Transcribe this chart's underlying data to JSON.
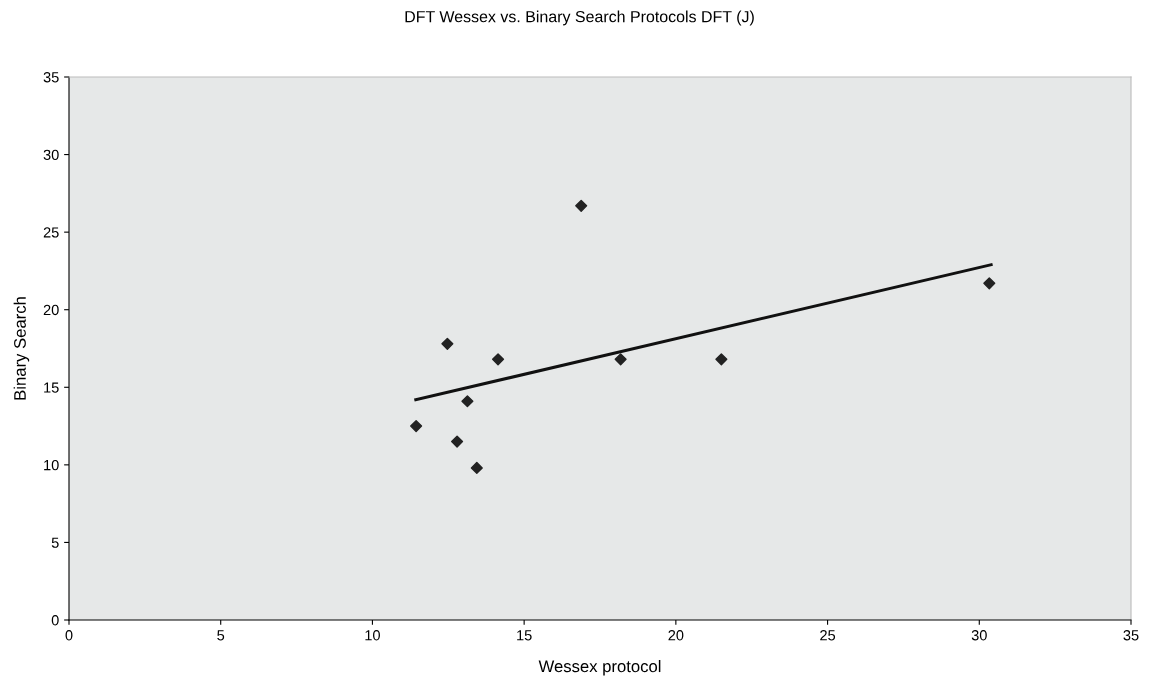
{
  "chart_data": {
    "type": "scatter",
    "title": "DFT Wessex vs. Binary Search Protocols DFT (J)",
    "xlabel": "Wessex protocol",
    "ylabel": "Binary Search",
    "grid": false,
    "xlim": [
      0,
      35
    ],
    "xticks": [
      0,
      5,
      10,
      15,
      20,
      25,
      30,
      35
    ],
    "ylim": [
      0,
      35
    ],
    "yticks": [
      0,
      5,
      10,
      15,
      20,
      25,
      30,
      35
    ],
    "series": [
      {
        "marker": "diamond",
        "color": "#222222",
        "x": [
          11.44,
          12.47,
          12.79,
          13.13,
          13.44,
          14.14,
          16.88,
          18.18,
          21.5,
          30.33
        ],
        "values": [
          12.5,
          17.8,
          11.5,
          14.1,
          9.8,
          16.8,
          26.7,
          16.8,
          16.8,
          21.7
        ]
      },
      {
        "type": "line",
        "marker": "none",
        "color": "#111111",
        "x": [
          11.43,
          30.39
        ],
        "values": [
          14.2,
          22.9
        ]
      }
    ]
  }
}
